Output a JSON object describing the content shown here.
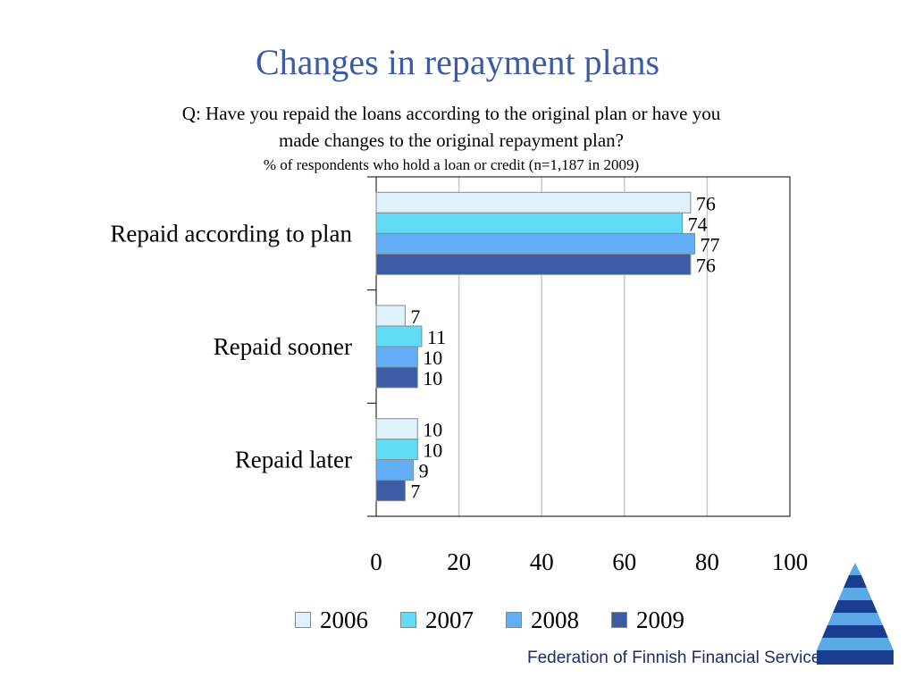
{
  "header": {
    "title": "Changes in repayment plans",
    "question_line1": "Q: Have you repaid the loans according to the original plan or have you",
    "question_line2": "made changes to the original repayment plan?",
    "subtitle": "% of respondents who hold a loan or credit (n=1,187 in 2009)"
  },
  "colors": {
    "title": "#3b5ba5",
    "series": [
      "#dff2fb",
      "#62dcf6",
      "#62aef6",
      "#3b5ba5"
    ]
  },
  "chart_data": {
    "type": "bar",
    "orientation": "horizontal",
    "title": "",
    "categories": [
      "Repaid according to plan",
      "Repaid sooner",
      "Repaid later"
    ],
    "series": [
      {
        "name": "2006",
        "values": [
          76,
          7,
          10
        ]
      },
      {
        "name": "2007",
        "values": [
          74,
          11,
          10
        ]
      },
      {
        "name": "2008",
        "values": [
          77,
          10,
          9
        ]
      },
      {
        "name": "2009",
        "values": [
          76,
          10,
          7
        ]
      }
    ],
    "xlim": [
      0,
      100
    ],
    "xticks": [
      "0",
      "20",
      "40",
      "60",
      "80",
      "100"
    ],
    "grid": "vertical",
    "legend": "bottom"
  },
  "footer": {
    "organization": "Federation of Finnish Financial Services",
    "logo_icon": "stepped-triangle-logo-icon"
  }
}
